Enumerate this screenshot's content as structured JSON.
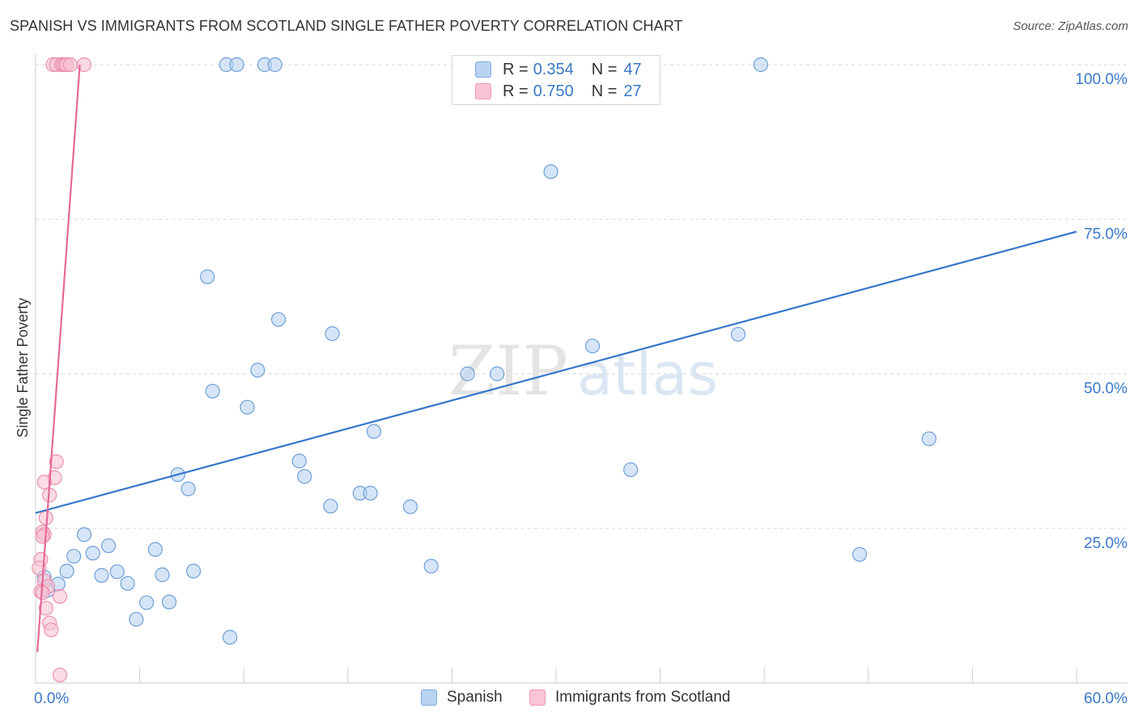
{
  "header": {
    "title": "SPANISH VS IMMIGRANTS FROM SCOTLAND SINGLE FATHER POVERTY CORRELATION CHART",
    "source": "Source: ZipAtlas.com"
  },
  "watermark": {
    "zip": "ZIP",
    "atlas": "atlas"
  },
  "legend": {
    "r_label": "R =",
    "n_label": "N =",
    "rows": [
      {
        "name": "Spanish",
        "r": "0.354",
        "n": "47",
        "fill": "#b9d3f2",
        "stroke": "#7ea9dd"
      },
      {
        "name": "Immigrants from Scotland",
        "r": "0.750",
        "n": "27",
        "fill": "#f9c5d4",
        "stroke": "#ee99b2"
      }
    ]
  },
  "colors": {
    "blue_line": "#3575c9",
    "pink_line": "#e5689a",
    "blue_fill": "#b9d3f2",
    "blue_stroke": "#6f9fd8",
    "pink_fill": "#f8c3d2",
    "pink_stroke": "#ec90ad",
    "grid": "#d9d9d9",
    "tick_label": "#3a78c8"
  },
  "chart_data": {
    "type": "scatter",
    "title": "SPANISH VS IMMIGRANTS FROM SCOTLAND SINGLE FATHER POVERTY CORRELATION CHART",
    "xlabel": "",
    "ylabel": "Single Father Poverty",
    "xlim": [
      0,
      60
    ],
    "ylim": [
      0,
      102
    ],
    "x_tick_labels": [
      {
        "value": 0,
        "label": "0.0%"
      },
      {
        "value": 60,
        "label": "60.0%"
      }
    ],
    "y_tick_labels": [
      {
        "value": 25,
        "label": "25.0%"
      },
      {
        "value": 50,
        "label": "50.0%"
      },
      {
        "value": 75,
        "label": "75.0%"
      },
      {
        "value": 100,
        "label": "100.0%"
      }
    ],
    "series": [
      {
        "name": "Spanish",
        "r": 0.354,
        "n": 47,
        "trend": {
          "x": [
            0,
            60
          ],
          "y": [
            27.5,
            73.0
          ]
        },
        "points": [
          [
            11.0,
            100
          ],
          [
            11.6,
            100
          ],
          [
            13.2,
            100
          ],
          [
            13.8,
            100
          ],
          [
            41.8,
            100
          ],
          [
            29.7,
            82.7
          ],
          [
            9.9,
            65.7
          ],
          [
            14.0,
            58.8
          ],
          [
            17.1,
            56.5
          ],
          [
            32.1,
            54.5
          ],
          [
            40.5,
            56.4
          ],
          [
            12.8,
            50.6
          ],
          [
            24.9,
            50.0
          ],
          [
            26.6,
            50.0
          ],
          [
            10.2,
            47.2
          ],
          [
            12.2,
            44.6
          ],
          [
            19.5,
            40.7
          ],
          [
            51.5,
            39.5
          ],
          [
            15.2,
            35.9
          ],
          [
            8.2,
            33.7
          ],
          [
            34.3,
            34.5
          ],
          [
            15.5,
            33.4
          ],
          [
            8.8,
            31.4
          ],
          [
            18.7,
            30.7
          ],
          [
            19.3,
            30.7
          ],
          [
            17.0,
            28.6
          ],
          [
            21.6,
            28.5
          ],
          [
            2.8,
            24.0
          ],
          [
            4.2,
            22.2
          ],
          [
            3.3,
            21.0
          ],
          [
            6.9,
            21.6
          ],
          [
            2.2,
            20.5
          ],
          [
            47.5,
            20.8
          ],
          [
            22.8,
            18.9
          ],
          [
            1.8,
            18.1
          ],
          [
            3.8,
            17.4
          ],
          [
            4.7,
            18.0
          ],
          [
            7.3,
            17.5
          ],
          [
            9.1,
            18.1
          ],
          [
            1.3,
            16.0
          ],
          [
            5.3,
            16.1
          ],
          [
            0.7,
            15.0
          ],
          [
            6.4,
            13.0
          ],
          [
            7.7,
            13.1
          ],
          [
            5.8,
            10.3
          ],
          [
            11.2,
            7.4
          ],
          [
            0.5,
            17.1
          ]
        ]
      },
      {
        "name": "Immigrants from Scotland",
        "r": 0.75,
        "n": 27,
        "trend": {
          "x": [
            0.1,
            2.55
          ],
          "y": [
            5.0,
            100.0
          ]
        },
        "points": [
          [
            1.0,
            100
          ],
          [
            1.2,
            100
          ],
          [
            1.5,
            100
          ],
          [
            1.6,
            100
          ],
          [
            1.7,
            100
          ],
          [
            1.8,
            100
          ],
          [
            2.0,
            100
          ],
          [
            2.8,
            100
          ],
          [
            1.2,
            35.8
          ],
          [
            1.1,
            33.2
          ],
          [
            0.5,
            32.5
          ],
          [
            0.8,
            30.4
          ],
          [
            0.6,
            26.7
          ],
          [
            0.4,
            24.4
          ],
          [
            0.5,
            24.0
          ],
          [
            0.4,
            23.7
          ],
          [
            0.3,
            20.0
          ],
          [
            0.2,
            18.6
          ],
          [
            0.5,
            16.5
          ],
          [
            0.7,
            15.6
          ],
          [
            0.3,
            14.8
          ],
          [
            0.4,
            14.6
          ],
          [
            1.4,
            14.0
          ],
          [
            0.6,
            12.1
          ],
          [
            0.8,
            9.7
          ],
          [
            0.9,
            8.6
          ],
          [
            1.4,
            1.3
          ]
        ]
      }
    ]
  }
}
